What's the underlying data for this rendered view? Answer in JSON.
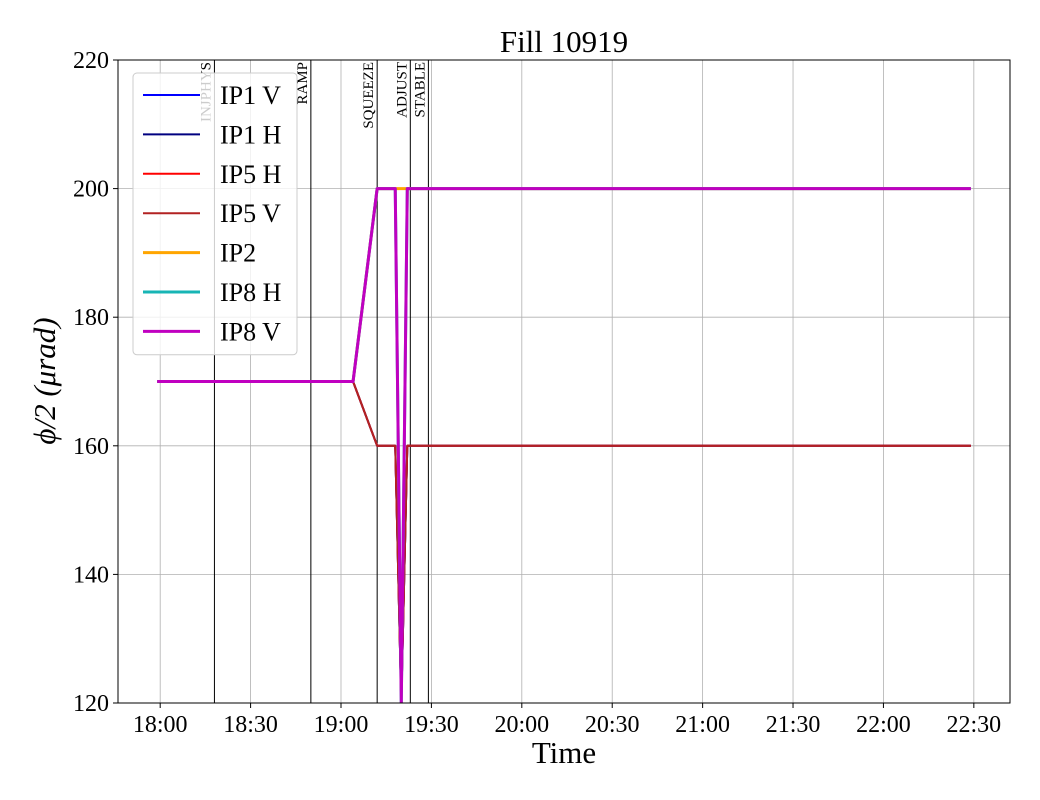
{
  "chart_data": {
    "type": "line",
    "title": "Fill 10919",
    "x_label": "Time",
    "y_label": "ϕ/2 (μrad)",
    "x": [
      "17:59",
      "19:04",
      "19:12",
      "19:18",
      "19:20",
      "19:22",
      "22:29"
    ],
    "series": [
      {
        "name": "IP1 V",
        "color": "#0000ff",
        "values": [
          170,
          170,
          160,
          160,
          120,
          160,
          160
        ]
      },
      {
        "name": "IP1 H",
        "color": "#000080",
        "values": [
          170,
          170,
          160,
          160,
          120,
          160,
          160
        ]
      },
      {
        "name": "IP5 H",
        "color": "#ff0000",
        "values": [
          170,
          170,
          160,
          160,
          120,
          160,
          160
        ]
      },
      {
        "name": "IP5 V",
        "color": "#b22222",
        "values": [
          170,
          170,
          160,
          160,
          120,
          160,
          160
        ]
      },
      {
        "name": "IP2",
        "color": "#ffa500",
        "values": [
          170,
          170,
          200,
          200,
          200,
          200,
          200
        ]
      },
      {
        "name": "IP8 H",
        "color": "#17b5b5",
        "values": [
          170,
          170,
          200,
          200,
          120,
          200,
          200
        ]
      },
      {
        "name": "IP8 V",
        "color": "#c000c0",
        "values": [
          170,
          170,
          200,
          200,
          120,
          200,
          200
        ]
      }
    ],
    "annotations": [
      {
        "label": "INJPHYS",
        "x": "18:18"
      },
      {
        "label": "RAMP",
        "x": "18:50"
      },
      {
        "label": "SQUEEZE",
        "x": "19:12"
      },
      {
        "label": "ADJUST",
        "x": "19:23"
      },
      {
        "label": "STABLE",
        "x": "19:29"
      }
    ],
    "xlim": [
      "17:46",
      "22:42"
    ],
    "xticks": [
      "18:00",
      "18:30",
      "19:00",
      "19:30",
      "20:00",
      "20:30",
      "21:00",
      "21:30",
      "22:00",
      "22:30"
    ],
    "ylim": [
      120,
      220
    ],
    "yticks": [
      120,
      140,
      160,
      180,
      200,
      220
    ],
    "grid": true,
    "legend": "upper left"
  }
}
